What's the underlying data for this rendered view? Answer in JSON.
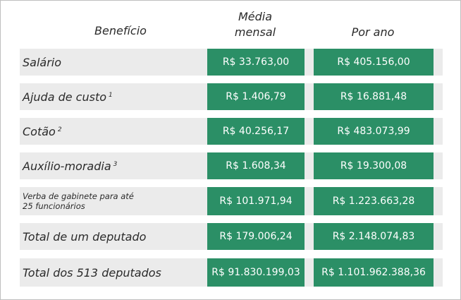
{
  "headers": {
    "benefit": "Benefício",
    "monthly_line1": "Média",
    "monthly_line2": "mensal",
    "yearly": "Por ano"
  },
  "rows": [
    {
      "label": "Salário",
      "note": "",
      "monthly": "R$ 33.763,00",
      "yearly": "R$ 405.156,00"
    },
    {
      "label": "Ajuda de custo",
      "note": "1",
      "monthly": "R$ 1.406,79",
      "yearly": "R$ 16.881,48"
    },
    {
      "label": "Cotão",
      "note": "2",
      "monthly": "R$ 40.256,17",
      "yearly": "R$ 483.073,99"
    },
    {
      "label": "Auxílio-moradia",
      "note": "3",
      "monthly": "R$ 1.608,34",
      "yearly": "R$ 19.300,08"
    },
    {
      "label_line1": "Verba de gabinete para até",
      "label_line2": "25 funcionários",
      "monthly": "R$ 101.971,94",
      "yearly": "R$ 1.223.663,28"
    },
    {
      "label": "Total de um deputado",
      "note": "",
      "monthly": "R$ 179.006,24",
      "yearly": "R$ 2.148.074,83"
    },
    {
      "label": "Total dos 513 deputados",
      "note": "",
      "monthly": "R$ 91.830.199,03",
      "yearly": "R$ 1.101.962.388,36"
    }
  ],
  "colors": {
    "value_cell_bg": "#2b8f66",
    "row_bg": "#ebebeb",
    "text": "#2b2b2b"
  }
}
